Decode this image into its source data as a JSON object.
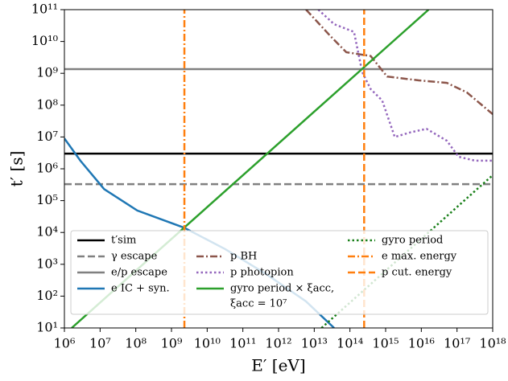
{
  "chart_data": {
    "type": "line",
    "xlabel": "E′ [eV]",
    "ylabel": "t′ [s]",
    "xscale": "log",
    "yscale": "log",
    "xlim": [
      1000000.0,
      1e+18
    ],
    "ylim": [
      10.0,
      100000000000.0
    ],
    "xticks": [
      {
        "value": 1000000.0,
        "label": "10⁶"
      },
      {
        "value": 10000000.0,
        "label": "10⁷"
      },
      {
        "value": 100000000.0,
        "label": "10⁸"
      },
      {
        "value": 1000000000.0,
        "label": "10⁹"
      },
      {
        "value": 10000000000.0,
        "label": "10¹⁰"
      },
      {
        "value": 100000000000.0,
        "label": "10¹¹"
      },
      {
        "value": 1000000000000.0,
        "label": "10¹²"
      },
      {
        "value": 10000000000000.0,
        "label": "10¹³"
      },
      {
        "value": 100000000000000.0,
        "label": "10¹⁴"
      },
      {
        "value": 1000000000000000.0,
        "label": "10¹⁵"
      },
      {
        "value": 1e+16,
        "label": "10¹⁶"
      },
      {
        "value": 1e+17,
        "label": "10¹⁷"
      },
      {
        "value": 1e+18,
        "label": "10¹⁸"
      }
    ],
    "yticks": [
      {
        "value": 10.0,
        "label": "10¹"
      },
      {
        "value": 100.0,
        "label": "10²"
      },
      {
        "value": 1000.0,
        "label": "10³"
      },
      {
        "value": 10000.0,
        "label": "10⁴"
      },
      {
        "value": 100000.0,
        "label": "10⁵"
      },
      {
        "value": 1000000.0,
        "label": "10⁶"
      },
      {
        "value": 10000000.0,
        "label": "10⁷"
      },
      {
        "value": 100000000.0,
        "label": "10⁸"
      },
      {
        "value": 1000000000.0,
        "label": "10⁹"
      },
      {
        "value": 10000000000.0,
        "label": "10¹⁰"
      },
      {
        "value": 100000000000.0,
        "label": "10¹¹"
      }
    ],
    "legend": "lower center",
    "series": [
      {
        "name": "t′sim",
        "color": "#000000",
        "linestyle": "solid",
        "x": [
          1000000.0,
          1e+18
        ],
        "y": [
          3000000.0,
          3000000.0
        ]
      },
      {
        "name": "γ escape",
        "color": "#808080",
        "linestyle": "dashed",
        "x": [
          1000000.0,
          1e+18
        ],
        "y": [
          330000.0,
          330000.0
        ]
      },
      {
        "name": "e/p escape",
        "color": "#808080",
        "linestyle": "solid",
        "x": [
          1000000.0,
          1e+18
        ],
        "y": [
          1350000000.0,
          1350000000.0
        ]
      },
      {
        "name": "e IC + syn.",
        "color": "#1f77b4",
        "linestyle": "solid",
        "x": [
          1000000.0,
          2800000.0,
          13000000.0,
          110000000.0,
          2300000000.0,
          32000000000.0,
          440000000000.0,
          5900000000000.0,
          36000000000000.0
        ],
        "y": [
          9000000.0,
          1800000.0,
          230000.0,
          49000.0,
          14000.0,
          3000.0,
          500.0,
          68,
          10
        ]
      },
      {
        "name": "p BH",
        "color": "#8c564b",
        "linestyle": "dashdot",
        "x": [
          5900000000000.0,
          28000000000000.0,
          79000000000000.0,
          380000000000000.0,
          1100000000000000.0,
          8500000000000000.0,
          5.2e+16,
          1.9e+17,
          1e+18
        ],
        "y": [
          100000000000.0,
          15000000000.0,
          4600000000.0,
          3500000000.0,
          790000000.0,
          600000000.0,
          500000000.0,
          250000000.0,
          52000000.0
        ]
      },
      {
        "name": "p photopion",
        "color": "#9467bd",
        "linestyle": "dotted",
        "x": [
          13000000000000.0,
          36000000000000.0,
          130000000000000.0,
          220000000000000.0,
          380000000000000.0,
          800000000000000.0,
          1800000000000000.0,
          5000000000000000.0,
          1.4e+16,
          5.2e+16,
          1.1e+17,
          3.2e+17,
          1e+18
        ],
        "y": [
          100000000000.0,
          35000000000.0,
          20000000000.0,
          1100000000.0,
          320000000.0,
          140000000.0,
          10000000.0,
          14000000.0,
          18000000.0,
          7600000.0,
          2400000.0,
          1800000.0,
          1800000.0
        ]
      },
      {
        "name": "gyro period × ξacc,",
        "name2": "ξacc = 10⁷",
        "color": "#2ca02c",
        "linestyle": "solid",
        "x": [
          1600000.0,
          1.6e+16
        ],
        "y": [
          10,
          100000000000.0
        ]
      },
      {
        "name": "gyro period",
        "color": "#1a801a",
        "linestyle": "dotted",
        "x": [
          16000000000000.0,
          1e+18
        ],
        "y": [
          10,
          630000.0
        ]
      },
      {
        "name": "e max. energy",
        "color": "#ff7f0e",
        "linestyle": "dashdot",
        "x": [
          2300000000.0,
          2300000000.0
        ],
        "y": [
          10.0,
          100000000000.0
        ]
      },
      {
        "name": "p cut. energy",
        "color": "#ff7f0e",
        "linestyle": "dashed",
        "x": [
          250000000000000.0,
          250000000000000.0
        ],
        "y": [
          10.0,
          100000000000.0
        ]
      }
    ]
  }
}
